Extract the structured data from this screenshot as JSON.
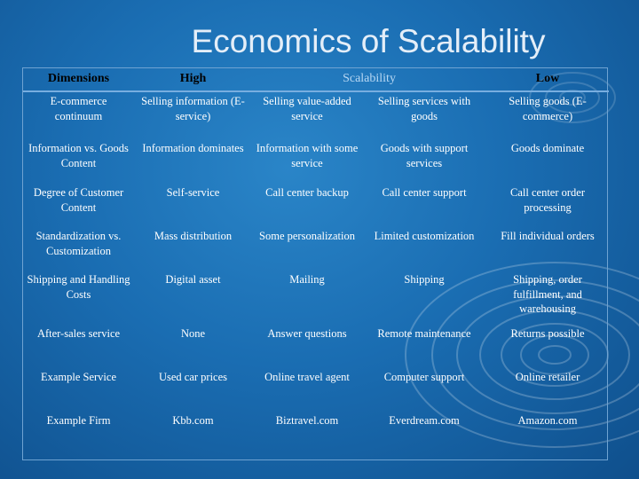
{
  "title": "Economics of Scalability",
  "header": {
    "dimensions": "Dimensions",
    "high": "High",
    "scalability": "Scalability",
    "low": "Low"
  },
  "rows": [
    {
      "dimension": "E-commerce continuum",
      "cells": [
        "Selling information (E-service)",
        "Selling value-added service",
        "Selling services with goods",
        "Selling goods (E-commerce)"
      ]
    },
    {
      "dimension": "Information vs. Goods Content",
      "cells": [
        "Information dominates",
        "Information with some service",
        "Goods with support services",
        "Goods dominate"
      ]
    },
    {
      "dimension": "Degree of Customer Content",
      "cells": [
        "Self-service",
        "Call center backup",
        "Call center support",
        "Call center order processing"
      ]
    },
    {
      "dimension": "Standardization vs. Customization",
      "cells": [
        "Mass distribution",
        "Some personalization",
        "Limited customization",
        "Fill individual orders"
      ]
    },
    {
      "dimension": "Shipping and Handling Costs",
      "cells": [
        "Digital asset",
        "Mailing",
        "Shipping",
        "Shipping, order fulfillment, and warehousing"
      ]
    },
    {
      "dimension": "After-sales service",
      "cells": [
        "None",
        "Answer questions",
        "Remote maintenance",
        "Returns possible"
      ]
    },
    {
      "dimension": "Example Service",
      "cells": [
        "Used car prices",
        "Online travel agent",
        "Computer support",
        "Online retailer"
      ]
    },
    {
      "dimension": "Example Firm",
      "cells": [
        "Kbb.com",
        "Biztravel.com",
        "Everdream.com",
        "Amazon.com"
      ]
    }
  ]
}
